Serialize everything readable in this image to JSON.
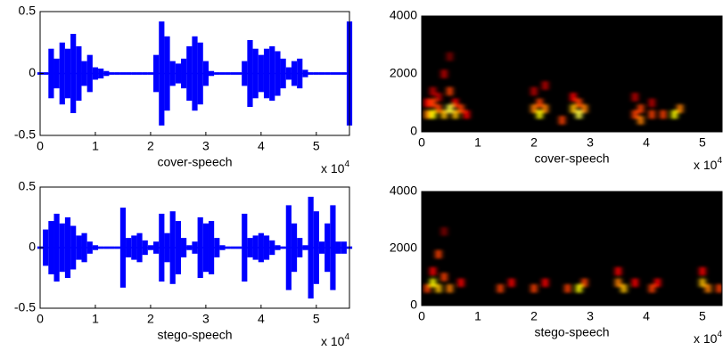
{
  "chart_data": [
    {
      "type": "waveform",
      "xlabel": "cover-speech",
      "x_multiplier": "x 10",
      "x_multiplier_exponent": "4",
      "color": "#0000ff",
      "xlim": [
        0,
        5.6
      ],
      "ylim": [
        -0.5,
        0.5
      ],
      "xticks": [
        0,
        1,
        2,
        3,
        4,
        5
      ],
      "yticks": [
        -0.5,
        0,
        0.5
      ],
      "x": [
        0.0,
        0.1,
        0.2,
        0.3,
        0.4,
        0.5,
        0.6,
        0.7,
        0.8,
        0.9,
        1.0,
        1.1,
        1.2,
        1.3,
        1.4,
        1.5,
        1.6,
        1.7,
        1.8,
        1.9,
        2.0,
        2.1,
        2.2,
        2.3,
        2.4,
        2.5,
        2.6,
        2.7,
        2.8,
        2.9,
        3.0,
        3.1,
        3.2,
        3.3,
        3.4,
        3.5,
        3.6,
        3.7,
        3.8,
        3.9,
        4.0,
        4.1,
        4.2,
        4.3,
        4.4,
        4.5,
        4.6,
        4.7,
        4.8,
        4.9,
        5.0,
        5.1,
        5.2,
        5.3,
        5.4,
        5.5,
        5.6
      ],
      "values": [
        0.01,
        0.01,
        0.2,
        0.12,
        0.25,
        0.2,
        0.32,
        0.22,
        0.1,
        0.15,
        0.05,
        0.04,
        0.02,
        0.01,
        0.01,
        0.01,
        0.01,
        0.01,
        0.01,
        0.01,
        0.01,
        0.15,
        0.42,
        0.3,
        0.1,
        0.08,
        0.12,
        0.22,
        0.3,
        0.25,
        0.1,
        0.02,
        0.01,
        0.01,
        0.01,
        0.01,
        0.01,
        0.1,
        0.27,
        0.2,
        0.15,
        0.2,
        0.22,
        0.18,
        0.12,
        0.05,
        0.1,
        0.12,
        0.03,
        0.01,
        0.01,
        0.01,
        0.01,
        0.01,
        0.01,
        0.01,
        0.42
      ]
    },
    {
      "type": "heatmap",
      "xlabel": "cover-speech",
      "x_multiplier": "x 10",
      "x_multiplier_exponent": "4",
      "colormap": "hot",
      "xlim": [
        0,
        5.35
      ],
      "ylim": [
        0,
        4000
      ],
      "xticks": [
        0,
        1,
        2,
        3,
        4,
        5
      ],
      "yticks": [
        0,
        2000,
        4000
      ],
      "x": [
        0.1,
        0.1,
        0.2,
        0.2,
        0.2,
        0.3,
        0.3,
        0.4,
        0.4,
        0.5,
        0.5,
        0.5,
        0.6,
        0.6,
        0.7,
        0.8,
        2.0,
        2.0,
        2.1,
        2.1,
        2.2,
        2.2,
        2.5,
        2.7,
        2.7,
        2.8,
        2.8,
        2.9,
        3.8,
        3.8,
        3.9,
        3.9,
        4.1,
        4.1,
        4.3,
        4.5,
        4.6
      ],
      "y": [
        600,
        1000,
        600,
        1000,
        1400,
        800,
        1200,
        600,
        2000,
        800,
        1400,
        2600,
        600,
        1000,
        800,
        600,
        800,
        1400,
        600,
        1000,
        800,
        1600,
        400,
        800,
        1200,
        600,
        1000,
        800,
        600,
        1200,
        400,
        800,
        600,
        1000,
        600,
        600,
        800
      ],
      "values": [
        0.6,
        0.4,
        0.8,
        0.5,
        0.3,
        0.5,
        0.3,
        0.7,
        0.3,
        0.9,
        0.5,
        0.2,
        0.7,
        0.4,
        0.5,
        0.4,
        0.6,
        0.3,
        0.8,
        0.5,
        0.6,
        0.3,
        0.5,
        0.7,
        0.4,
        0.9,
        0.5,
        0.6,
        0.5,
        0.3,
        0.6,
        0.5,
        0.5,
        0.3,
        0.5,
        0.8,
        0.6
      ]
    },
    {
      "type": "waveform",
      "xlabel": "stego-speech",
      "x_multiplier": "x 10",
      "x_multiplier_exponent": "4",
      "color": "#0000ff",
      "xlim": [
        0,
        5.6
      ],
      "ylim": [
        -0.5,
        0.5
      ],
      "xticks": [
        0,
        1,
        2,
        3,
        4,
        5
      ],
      "yticks": [
        -0.5,
        0,
        0.5
      ],
      "x": [
        0.0,
        0.1,
        0.2,
        0.3,
        0.4,
        0.5,
        0.6,
        0.7,
        0.8,
        0.9,
        1.0,
        1.1,
        1.2,
        1.3,
        1.4,
        1.5,
        1.6,
        1.7,
        1.8,
        1.9,
        2.0,
        2.1,
        2.2,
        2.3,
        2.4,
        2.5,
        2.6,
        2.7,
        2.8,
        2.9,
        3.0,
        3.1,
        3.2,
        3.3,
        3.4,
        3.5,
        3.6,
        3.7,
        3.8,
        3.9,
        4.0,
        4.1,
        4.2,
        4.3,
        4.4,
        4.5,
        4.6,
        4.7,
        4.8,
        4.9,
        5.0,
        5.1,
        5.2,
        5.3,
        5.4,
        5.5,
        5.6
      ],
      "values": [
        0.01,
        0.15,
        0.22,
        0.28,
        0.2,
        0.25,
        0.18,
        0.1,
        0.12,
        0.05,
        0.02,
        0.01,
        0.01,
        0.01,
        0.01,
        0.33,
        0.08,
        0.1,
        0.12,
        0.06,
        0.02,
        0.05,
        0.28,
        0.12,
        0.3,
        0.22,
        0.08,
        0.02,
        0.05,
        0.25,
        0.2,
        0.22,
        0.08,
        0.02,
        0.01,
        0.01,
        0.01,
        0.28,
        0.08,
        0.1,
        0.12,
        0.1,
        0.06,
        0.02,
        0.01,
        0.35,
        0.2,
        0.08,
        0.02,
        0.42,
        0.3,
        0.05,
        0.2,
        0.35,
        0.05,
        0.05,
        0.01
      ]
    },
    {
      "type": "heatmap",
      "xlabel": "stego-speech",
      "x_multiplier": "x 10",
      "x_multiplier_exponent": "4",
      "colormap": "hot",
      "xlim": [
        0,
        5.35
      ],
      "ylim": [
        0,
        4000
      ],
      "xticks": [
        0,
        1,
        2,
        3,
        4,
        5
      ],
      "yticks": [
        0,
        2000,
        4000
      ],
      "x": [
        0.1,
        0.2,
        0.2,
        0.3,
        0.3,
        0.4,
        0.4,
        0.5,
        0.7,
        1.4,
        1.6,
        2.0,
        2.2,
        2.6,
        2.8,
        2.9,
        3.5,
        3.5,
        3.6,
        3.8,
        4.1,
        4.2,
        5.0,
        5.0,
        5.1,
        5.3
      ],
      "y": [
        600,
        800,
        1200,
        600,
        1800,
        1000,
        2600,
        600,
        800,
        600,
        800,
        600,
        800,
        600,
        600,
        800,
        800,
        1200,
        600,
        800,
        600,
        800,
        800,
        1200,
        600,
        600
      ],
      "values": [
        0.5,
        0.8,
        0.4,
        0.7,
        0.5,
        0.5,
        0.2,
        0.6,
        0.4,
        0.5,
        0.4,
        0.5,
        0.4,
        0.5,
        0.8,
        0.5,
        0.6,
        0.4,
        0.7,
        0.4,
        0.5,
        0.4,
        0.7,
        0.4,
        0.6,
        0.5
      ]
    }
  ]
}
